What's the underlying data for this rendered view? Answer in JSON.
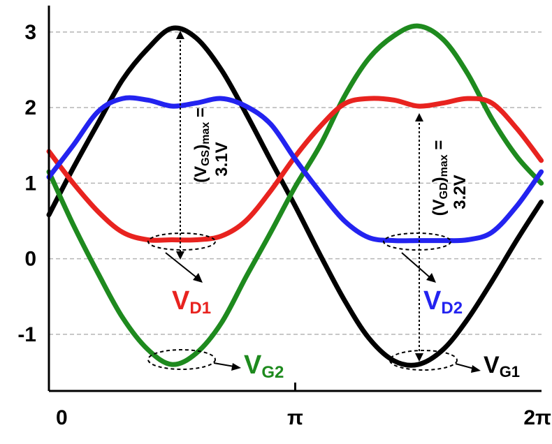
{
  "chart_data": {
    "type": "line",
    "xlabel": "",
    "ylabel": "",
    "xlim": [
      0,
      6.2832
    ],
    "ylim": [
      -1.75,
      3.35
    ],
    "grid": "horizontal dashed",
    "y_ticks": [
      -1,
      0,
      1,
      2,
      3
    ],
    "y_tick_labels": [
      "-1",
      "0",
      "1",
      "2",
      "3"
    ],
    "x_tick_labels": [
      {
        "value": 0,
        "label": "0"
      },
      {
        "value": 3.1416,
        "label": "π"
      },
      {
        "value": 6.2832,
        "label": "2π"
      }
    ],
    "series": [
      {
        "name": "VG1",
        "color": "#000000",
        "x": [
          0,
          0.31,
          0.63,
          0.94,
          1.26,
          1.57,
          1.88,
          2.2,
          2.51,
          2.83,
          3.14,
          3.46,
          3.77,
          4.08,
          4.4,
          4.71,
          5.03,
          5.34,
          5.65,
          5.97,
          6.28
        ],
        "y": [
          0.58,
          1.2,
          1.8,
          2.37,
          2.78,
          3.05,
          2.92,
          2.5,
          1.93,
          1.3,
          0.7,
          0.05,
          -0.55,
          -1.05,
          -1.35,
          -1.4,
          -1.2,
          -0.8,
          -0.3,
          0.25,
          0.75
        ]
      },
      {
        "name": "VG2",
        "color": "#1e8a1e",
        "x": [
          0,
          0.31,
          0.63,
          0.94,
          1.26,
          1.57,
          1.88,
          2.2,
          2.51,
          2.83,
          3.14,
          3.46,
          3.77,
          4.08,
          4.4,
          4.71,
          5.03,
          5.34,
          5.65,
          5.97,
          6.28
        ],
        "y": [
          1.15,
          0.45,
          -0.2,
          -0.78,
          -1.2,
          -1.4,
          -1.25,
          -0.85,
          -0.25,
          0.35,
          0.95,
          1.5,
          2.15,
          2.65,
          2.95,
          3.08,
          2.9,
          2.45,
          1.85,
          1.35,
          1.0
        ]
      },
      {
        "name": "VD1",
        "color": "#e8231f",
        "x": [
          0,
          0.31,
          0.63,
          0.94,
          1.26,
          1.57,
          1.88,
          2.2,
          2.51,
          2.83,
          3.14,
          3.46,
          3.77,
          4.08,
          4.4,
          4.71,
          5.03,
          5.34,
          5.65,
          5.97,
          6.28
        ],
        "y": [
          1.42,
          1.0,
          0.62,
          0.35,
          0.25,
          0.25,
          0.25,
          0.3,
          0.5,
          0.9,
          1.35,
          1.75,
          2.05,
          2.12,
          2.1,
          2.02,
          2.06,
          2.12,
          2.06,
          1.72,
          1.3
        ]
      },
      {
        "name": "VD2",
        "color": "#2323f0",
        "x": [
          0,
          0.31,
          0.63,
          0.94,
          1.26,
          1.57,
          1.88,
          2.2,
          2.51,
          2.83,
          3.14,
          3.46,
          3.77,
          4.08,
          4.4,
          4.71,
          5.03,
          5.34,
          5.65,
          5.97,
          6.28
        ],
        "y": [
          1.08,
          1.5,
          1.95,
          2.12,
          2.1,
          2.02,
          2.06,
          2.12,
          2.02,
          1.78,
          1.32,
          0.88,
          0.5,
          0.28,
          0.24,
          0.24,
          0.24,
          0.25,
          0.35,
          0.7,
          1.15
        ]
      }
    ],
    "annotations": {
      "vgs_label": "(VGS)max =",
      "vgs_value": "3.1V",
      "vgd_label": "(VGD)max =",
      "vgd_value": "3.2V"
    },
    "curve_labels": {
      "vd1_main": "V",
      "vd1_sub": "D1",
      "vd2_main": "V",
      "vd2_sub": "D2",
      "vg1_main": "V",
      "vg1_sub": "G1",
      "vg2_main": "V",
      "vg2_sub": "G2"
    }
  }
}
